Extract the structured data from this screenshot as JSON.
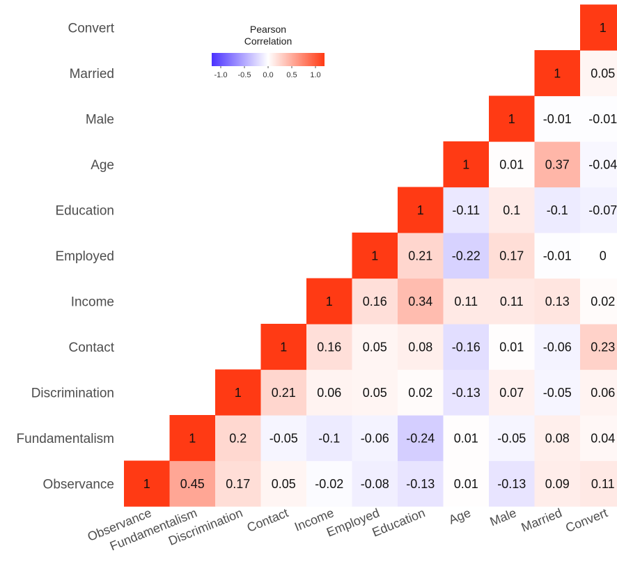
{
  "chart_data": {
    "type": "heatmap",
    "variables": [
      "Observance",
      "Fundamentalism",
      "Discrimination",
      "Contact",
      "Income",
      "Employed",
      "Education",
      "Age",
      "Male",
      "Married",
      "Convert"
    ],
    "x_labels": [
      "Observance",
      "Fundamentalism",
      "Discrimination",
      "Contact",
      "Income",
      "Employed",
      "Education",
      "Age",
      "Male",
      "Married",
      "Convert"
    ],
    "y_labels": [
      "Observance",
      "Fundamentalism",
      "Discrimination",
      "Contact",
      "Income",
      "Employed",
      "Education",
      "Age",
      "Male",
      "Married",
      "Convert"
    ],
    "matrix_rows": [
      [
        "1",
        "0.45",
        "0.17",
        "0.05",
        "-0.02",
        "-0.08",
        "-0.13",
        "0.01",
        "-0.13",
        "0.09",
        "0.11"
      ],
      [
        "",
        "1",
        "0.2",
        "-0.05",
        "-0.1",
        "-0.06",
        "-0.24",
        "0.01",
        "-0.05",
        "0.08",
        "0.04"
      ],
      [
        "",
        "",
        "1",
        "0.21",
        "0.06",
        "0.05",
        "0.02",
        "-0.13",
        "0.07",
        "-0.05",
        "0.06"
      ],
      [
        "",
        "",
        "",
        "1",
        "0.16",
        "0.05",
        "0.08",
        "-0.16",
        "0.01",
        "-0.06",
        "0.23"
      ],
      [
        "",
        "",
        "",
        "",
        "1",
        "0.16",
        "0.34",
        "0.11",
        "0.11",
        "0.13",
        "0.02"
      ],
      [
        "",
        "",
        "",
        "",
        "",
        "1",
        "0.21",
        "-0.22",
        "0.17",
        "-0.01",
        "0"
      ],
      [
        "",
        "",
        "",
        "",
        "",
        "",
        "1",
        "-0.11",
        "0.1",
        "-0.1",
        "-0.07"
      ],
      [
        "",
        "",
        "",
        "",
        "",
        "",
        "",
        "1",
        "0.01",
        "0.37",
        "-0.04"
      ],
      [
        "",
        "",
        "",
        "",
        "",
        "",
        "",
        "",
        "1",
        "-0.01",
        "-0.01"
      ],
      [
        "",
        "",
        "",
        "",
        "",
        "",
        "",
        "",
        "",
        "1",
        "0.05"
      ],
      [
        "",
        "",
        "",
        "",
        "",
        "",
        "",
        "",
        "",
        "",
        "1"
      ]
    ],
    "legend": {
      "title_lines": [
        "Pearson",
        "Correlation"
      ],
      "ticks": [
        "-1.0",
        "-0.5",
        "0.0",
        "0.5",
        "1.0"
      ],
      "range": [
        -1,
        1
      ],
      "position": "top-left"
    },
    "colors": {
      "low": "#4b32ff",
      "mid": "#ffffff",
      "high": "#ff3a14"
    }
  }
}
